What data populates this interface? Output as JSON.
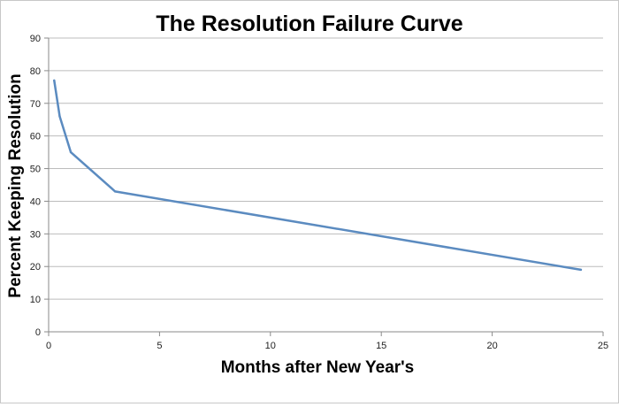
{
  "chart_data": {
    "type": "line",
    "title": "The Resolution Failure Curve",
    "xlabel": "Months after New Year's",
    "ylabel": "Percent Keeping  Resolution",
    "xlim": [
      0,
      25
    ],
    "ylim": [
      0,
      90
    ],
    "x_ticks": [
      0,
      5,
      10,
      15,
      20,
      25
    ],
    "y_ticks": [
      0,
      10,
      20,
      30,
      40,
      50,
      60,
      70,
      80,
      90
    ],
    "grid": {
      "horizontal": true,
      "vertical": false
    },
    "legend": "none",
    "series": [
      {
        "x": [
          0.25,
          0.5,
          1,
          3,
          24
        ],
        "y": [
          77,
          66,
          55,
          43,
          19
        ],
        "color": "#5b8bc0"
      }
    ]
  }
}
